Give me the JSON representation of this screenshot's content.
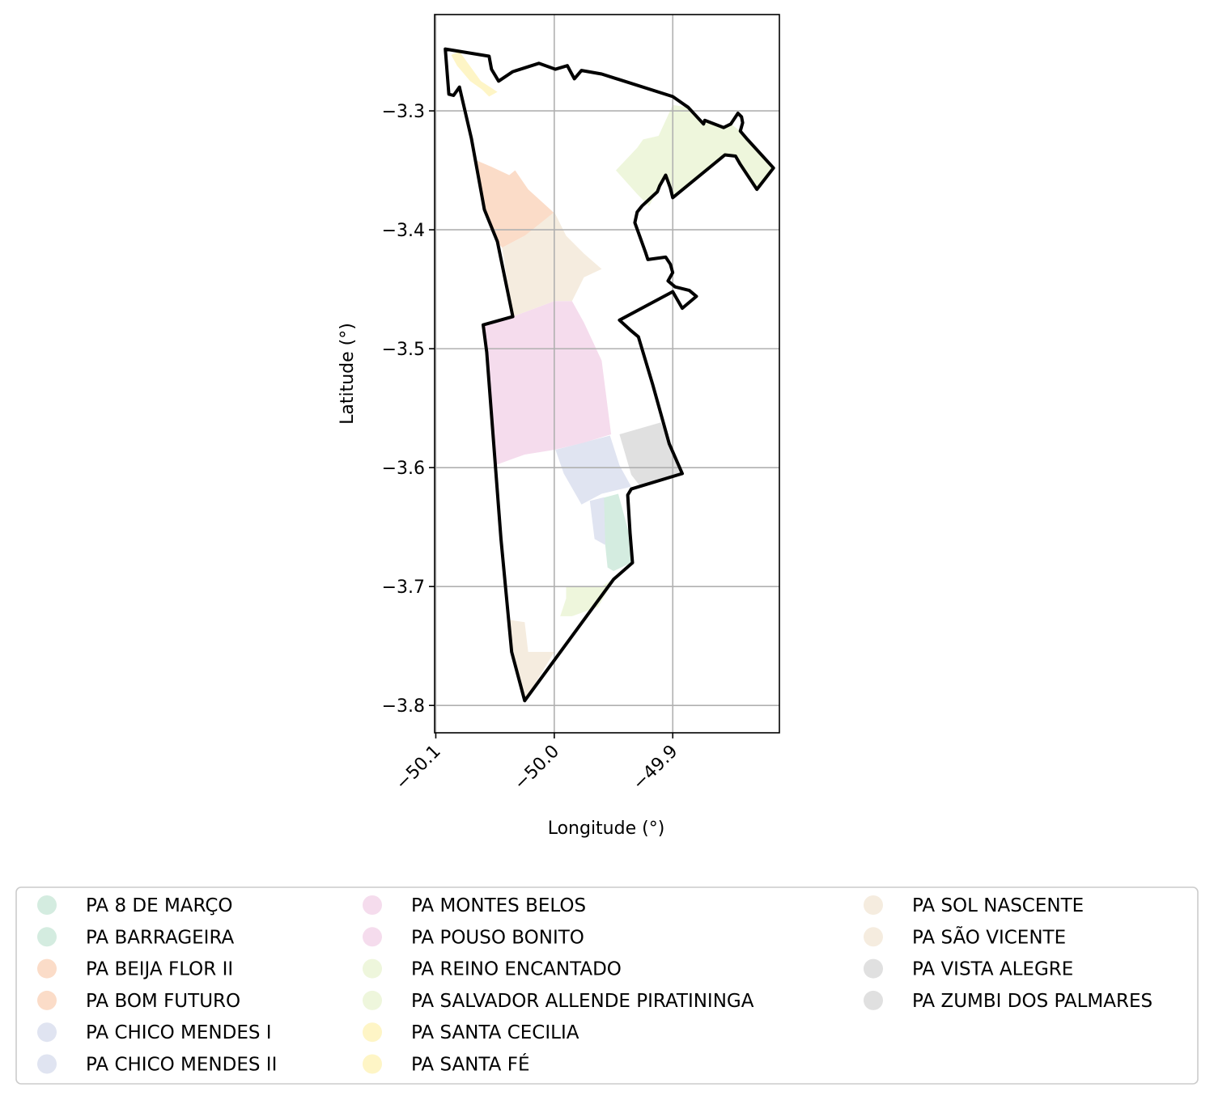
{
  "chart_data": {
    "type": "map",
    "xlabel": "Longitude (°)",
    "ylabel": "Latitude (°)",
    "xlim": [
      -50.101,
      -49.81
    ],
    "ylim": [
      -3.823,
      -3.219
    ],
    "x_ticks": [
      {
        "value": -50.1,
        "label": "−50.1"
      },
      {
        "value": -50.0,
        "label": "−50.0"
      },
      {
        "value": -49.9,
        "label": "−49.9"
      }
    ],
    "y_ticks": [
      {
        "value": -3.3,
        "label": "−3.3"
      },
      {
        "value": -3.4,
        "label": "−3.4"
      },
      {
        "value": -3.5,
        "label": "−3.5"
      },
      {
        "value": -3.6,
        "label": "−3.6"
      },
      {
        "value": -3.7,
        "label": "−3.7"
      },
      {
        "value": -3.8,
        "label": "−3.8"
      }
    ],
    "grid": true,
    "legend_position": "bottom",
    "boundary": {
      "stroke": "#000000",
      "coords": [
        [
          -50.092,
          -3.248
        ],
        [
          -50.055,
          -3.254
        ],
        [
          -50.053,
          -3.265
        ],
        [
          -50.047,
          -3.275
        ],
        [
          -50.035,
          -3.267
        ],
        [
          -50.013,
          -3.26
        ],
        [
          -49.999,
          -3.265
        ],
        [
          -49.989,
          -3.262
        ],
        [
          -49.983,
          -3.273
        ],
        [
          -49.977,
          -3.266
        ],
        [
          -49.96,
          -3.269
        ],
        [
          -49.9,
          -3.288
        ],
        [
          -49.887,
          -3.297
        ],
        [
          -49.874,
          -3.311
        ],
        [
          -49.873,
          -3.308
        ],
        [
          -49.865,
          -3.311
        ],
        [
          -49.857,
          -3.314
        ],
        [
          -49.851,
          -3.311
        ],
        [
          -49.845,
          -3.302
        ],
        [
          -49.842,
          -3.305
        ],
        [
          -49.841,
          -3.31
        ],
        [
          -49.843,
          -3.317
        ],
        [
          -49.837,
          -3.324
        ],
        [
          -49.815,
          -3.348
        ],
        [
          -49.829,
          -3.366
        ],
        [
          -49.843,
          -3.345
        ],
        [
          -49.847,
          -3.338
        ],
        [
          -49.856,
          -3.337
        ],
        [
          -49.9,
          -3.373
        ],
        [
          -49.902,
          -3.365
        ],
        [
          -49.906,
          -3.354
        ],
        [
          -49.911,
          -3.363
        ],
        [
          -49.913,
          -3.368
        ],
        [
          -49.926,
          -3.38
        ],
        [
          -49.93,
          -3.385
        ],
        [
          -49.932,
          -3.394
        ],
        [
          -49.923,
          -3.419
        ],
        [
          -49.921,
          -3.425
        ],
        [
          -49.906,
          -3.423
        ],
        [
          -49.902,
          -3.429
        ],
        [
          -49.9,
          -3.436
        ],
        [
          -49.904,
          -3.443
        ],
        [
          -49.898,
          -3.448
        ],
        [
          -49.886,
          -3.451
        ],
        [
          -49.88,
          -3.456
        ],
        [
          -49.892,
          -3.466
        ],
        [
          -49.9,
          -3.452
        ],
        [
          -49.945,
          -3.476
        ],
        [
          -49.935,
          -3.485
        ],
        [
          -49.929,
          -3.49
        ],
        [
          -49.917,
          -3.53
        ],
        [
          -49.903,
          -3.58
        ],
        [
          -49.892,
          -3.605
        ],
        [
          -49.935,
          -3.618
        ],
        [
          -49.938,
          -3.623
        ],
        [
          -49.936,
          -3.655
        ],
        [
          -49.934,
          -3.68
        ],
        [
          -49.95,
          -3.694
        ],
        [
          -50.025,
          -3.796
        ],
        [
          -50.036,
          -3.755
        ],
        [
          -50.045,
          -3.66
        ],
        [
          -50.057,
          -3.503
        ],
        [
          -50.06,
          -3.48
        ],
        [
          -50.035,
          -3.473
        ],
        [
          -50.048,
          -3.41
        ],
        [
          -50.059,
          -3.383
        ],
        [
          -50.07,
          -3.323
        ],
        [
          -50.08,
          -3.28
        ],
        [
          -50.085,
          -3.287
        ],
        [
          -50.089,
          -3.286
        ]
      ]
    },
    "regions": [
      {
        "name": "PA 8 DE MARÇO",
        "color": "#d4ece0",
        "coords": [
          [
            -49.961,
            -3.626
          ],
          [
            -49.946,
            -3.622
          ],
          [
            -49.937,
            -3.655
          ],
          [
            -49.935,
            -3.68
          ],
          [
            -49.95,
            -3.687
          ],
          [
            -49.955,
            -3.684
          ],
          [
            -49.958,
            -3.655
          ]
        ]
      },
      {
        "name": "PA BARRAGEIRA",
        "color": "#d4ece0",
        "coords": []
      },
      {
        "name": "PA BEIJA FLOR II",
        "color": "#fbdcc8",
        "coords": [
          [
            -50.065,
            -3.342
          ],
          [
            -50.053,
            -3.347
          ],
          [
            -50.038,
            -3.354
          ],
          [
            -50.033,
            -3.35
          ],
          [
            -50.022,
            -3.366
          ],
          [
            -50.0,
            -3.386
          ],
          [
            -50.01,
            -3.395
          ],
          [
            -50.025,
            -3.405
          ],
          [
            -50.044,
            -3.415
          ],
          [
            -50.048,
            -3.41
          ],
          [
            -50.059,
            -3.383
          ]
        ]
      },
      {
        "name": "PA BOM FUTURO",
        "color": "#fbdcc8",
        "coords": []
      },
      {
        "name": "PA CHICO MENDES I",
        "color": "#e0e4f1",
        "coords": [
          [
            -49.999,
            -3.585
          ],
          [
            -49.968,
            -3.577
          ],
          [
            -49.953,
            -3.573
          ],
          [
            -49.945,
            -3.598
          ],
          [
            -49.935,
            -3.616
          ],
          [
            -49.96,
            -3.622
          ],
          [
            -49.977,
            -3.631
          ],
          [
            -49.992,
            -3.605
          ]
        ]
      },
      {
        "name": "PA CHICO MENDES II",
        "color": "#e0e4f1",
        "coords": [
          [
            -49.97,
            -3.628
          ],
          [
            -49.958,
            -3.625
          ],
          [
            -49.957,
            -3.665
          ],
          [
            -49.966,
            -3.66
          ]
        ]
      },
      {
        "name": "PA MONTES BELOS",
        "color": "#f5dced",
        "coords": [
          [
            -50.06,
            -3.48
          ],
          [
            -50.035,
            -3.473
          ],
          [
            -50.0,
            -3.46
          ],
          [
            -49.985,
            -3.46
          ],
          [
            -49.975,
            -3.478
          ],
          [
            -49.96,
            -3.51
          ],
          [
            -49.952,
            -3.572
          ],
          [
            -49.975,
            -3.579
          ],
          [
            -50.0,
            -3.585
          ],
          [
            -50.025,
            -3.589
          ],
          [
            -50.05,
            -3.598
          ],
          [
            -50.057,
            -3.503
          ]
        ]
      },
      {
        "name": "PA POUSO BONITO",
        "color": "#f5dced",
        "coords": []
      },
      {
        "name": "PA REINO ENCANTADO",
        "color": "#eef6dc",
        "coords": [
          [
            -49.93,
            -3.331
          ],
          [
            -49.925,
            -3.324
          ],
          [
            -49.912,
            -3.321
          ],
          [
            -49.905,
            -3.306
          ],
          [
            -49.9,
            -3.295
          ],
          [
            -49.887,
            -3.297
          ],
          [
            -49.874,
            -3.311
          ],
          [
            -49.873,
            -3.308
          ],
          [
            -49.857,
            -3.314
          ],
          [
            -49.851,
            -3.311
          ],
          [
            -49.843,
            -3.317
          ],
          [
            -49.837,
            -3.324
          ],
          [
            -49.815,
            -3.348
          ],
          [
            -49.829,
            -3.366
          ],
          [
            -49.843,
            -3.345
          ],
          [
            -49.847,
            -3.338
          ],
          [
            -49.856,
            -3.337
          ],
          [
            -49.9,
            -3.373
          ],
          [
            -49.906,
            -3.354
          ],
          [
            -49.911,
            -3.363
          ],
          [
            -49.92,
            -3.38
          ],
          [
            -49.93,
            -3.37
          ],
          [
            -49.948,
            -3.35
          ]
        ]
      },
      {
        "name": "PA SALVADOR ALLENDE PIRATININGA",
        "color": "#eef6dc",
        "coords": [
          [
            -49.99,
            -3.7
          ],
          [
            -49.96,
            -3.7
          ],
          [
            -49.948,
            -3.692
          ],
          [
            -49.963,
            -3.717
          ],
          [
            -49.985,
            -3.725
          ],
          [
            -49.995,
            -3.725
          ],
          [
            -49.99,
            -3.71
          ]
        ]
      },
      {
        "name": "PA SANTA CECILIA",
        "color": "#fef5c6",
        "coords": [
          [
            -50.087,
            -3.253
          ],
          [
            -50.082,
            -3.262
          ],
          [
            -50.071,
            -3.275
          ],
          [
            -50.061,
            -3.282
          ],
          [
            -50.055,
            -3.288
          ],
          [
            -50.048,
            -3.284
          ],
          [
            -50.062,
            -3.275
          ],
          [
            -50.08,
            -3.25
          ]
        ]
      },
      {
        "name": "PA SANTA FÉ",
        "color": "#fef5c6",
        "coords": []
      },
      {
        "name": "PA SOL NASCENTE",
        "color": "#f5ecdf",
        "coords": [
          [
            -50.044,
            -3.415
          ],
          [
            -50.025,
            -3.405
          ],
          [
            -50.0,
            -3.385
          ],
          [
            -49.99,
            -3.405
          ],
          [
            -49.975,
            -3.42
          ],
          [
            -49.96,
            -3.433
          ],
          [
            -49.975,
            -3.44
          ],
          [
            -49.985,
            -3.46
          ],
          [
            -50.0,
            -3.46
          ],
          [
            -50.035,
            -3.473
          ]
        ]
      },
      {
        "name": "PA SÃO VICENTE",
        "color": "#f5ecdf",
        "coords": [
          [
            -50.038,
            -3.728
          ],
          [
            -50.025,
            -3.73
          ],
          [
            -50.022,
            -3.755
          ],
          [
            -50.0,
            -3.755
          ],
          [
            -50.025,
            -3.796
          ],
          [
            -50.032,
            -3.77
          ],
          [
            -50.036,
            -3.755
          ]
        ]
      },
      {
        "name": "PA VISTA ALEGRE",
        "color": "#e0e0e0",
        "coords": [
          [
            -49.945,
            -3.572
          ],
          [
            -49.91,
            -3.562
          ],
          [
            -49.903,
            -3.58
          ],
          [
            -49.893,
            -3.605
          ],
          [
            -49.928,
            -3.615
          ],
          [
            -49.935,
            -3.606
          ]
        ]
      },
      {
        "name": "PA ZUMBI DOS PALMARES",
        "color": "#e0e0e0",
        "coords": []
      }
    ]
  }
}
